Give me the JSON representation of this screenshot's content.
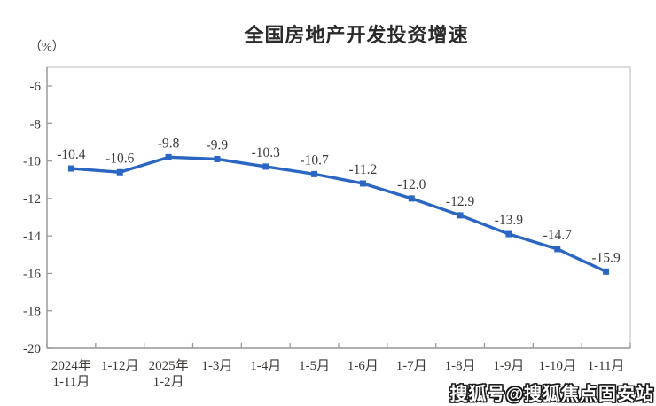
{
  "chart_data": {
    "type": "line",
    "title": "全国房地产开发投资增速",
    "unit_label": "（%）",
    "categories": [
      [
        "2024年",
        "1-11月"
      ],
      [
        "1-12月"
      ],
      [
        "2025年",
        "1-2月"
      ],
      [
        "1-3月"
      ],
      [
        "1-4月"
      ],
      [
        "1-5月"
      ],
      [
        "1-6月"
      ],
      [
        "1-7月"
      ],
      [
        "1-8月"
      ],
      [
        "1-9月"
      ],
      [
        "1-10月"
      ],
      [
        "1-11月"
      ]
    ],
    "values": [
      -10.4,
      -10.6,
      -9.8,
      -9.9,
      -10.3,
      -10.7,
      -11.2,
      -12.0,
      -12.9,
      -13.9,
      -14.7,
      -15.9
    ],
    "data_labels": [
      "-10.4",
      "-10.6",
      "-9.8",
      "-9.9",
      "-10.3",
      "-10.7",
      "-11.2",
      "-12.0",
      "-12.9",
      "-13.9",
      "-14.7",
      "-15.9"
    ],
    "y_ticks": [
      -6,
      -8,
      -10,
      -12,
      -14,
      -16,
      -18,
      -20
    ],
    "ylim": [
      -20,
      -6
    ],
    "grid": false,
    "legend": "none",
    "marker": "square",
    "series_color": "#2b66c3",
    "label_color": "#3c3c3c",
    "axis_text_color": "#3c3835",
    "axis_line_color": "#9a9a9a",
    "border_color": "#c9c9c9"
  },
  "watermark": {
    "text": "搜狐号@搜狐焦点固安站"
  }
}
